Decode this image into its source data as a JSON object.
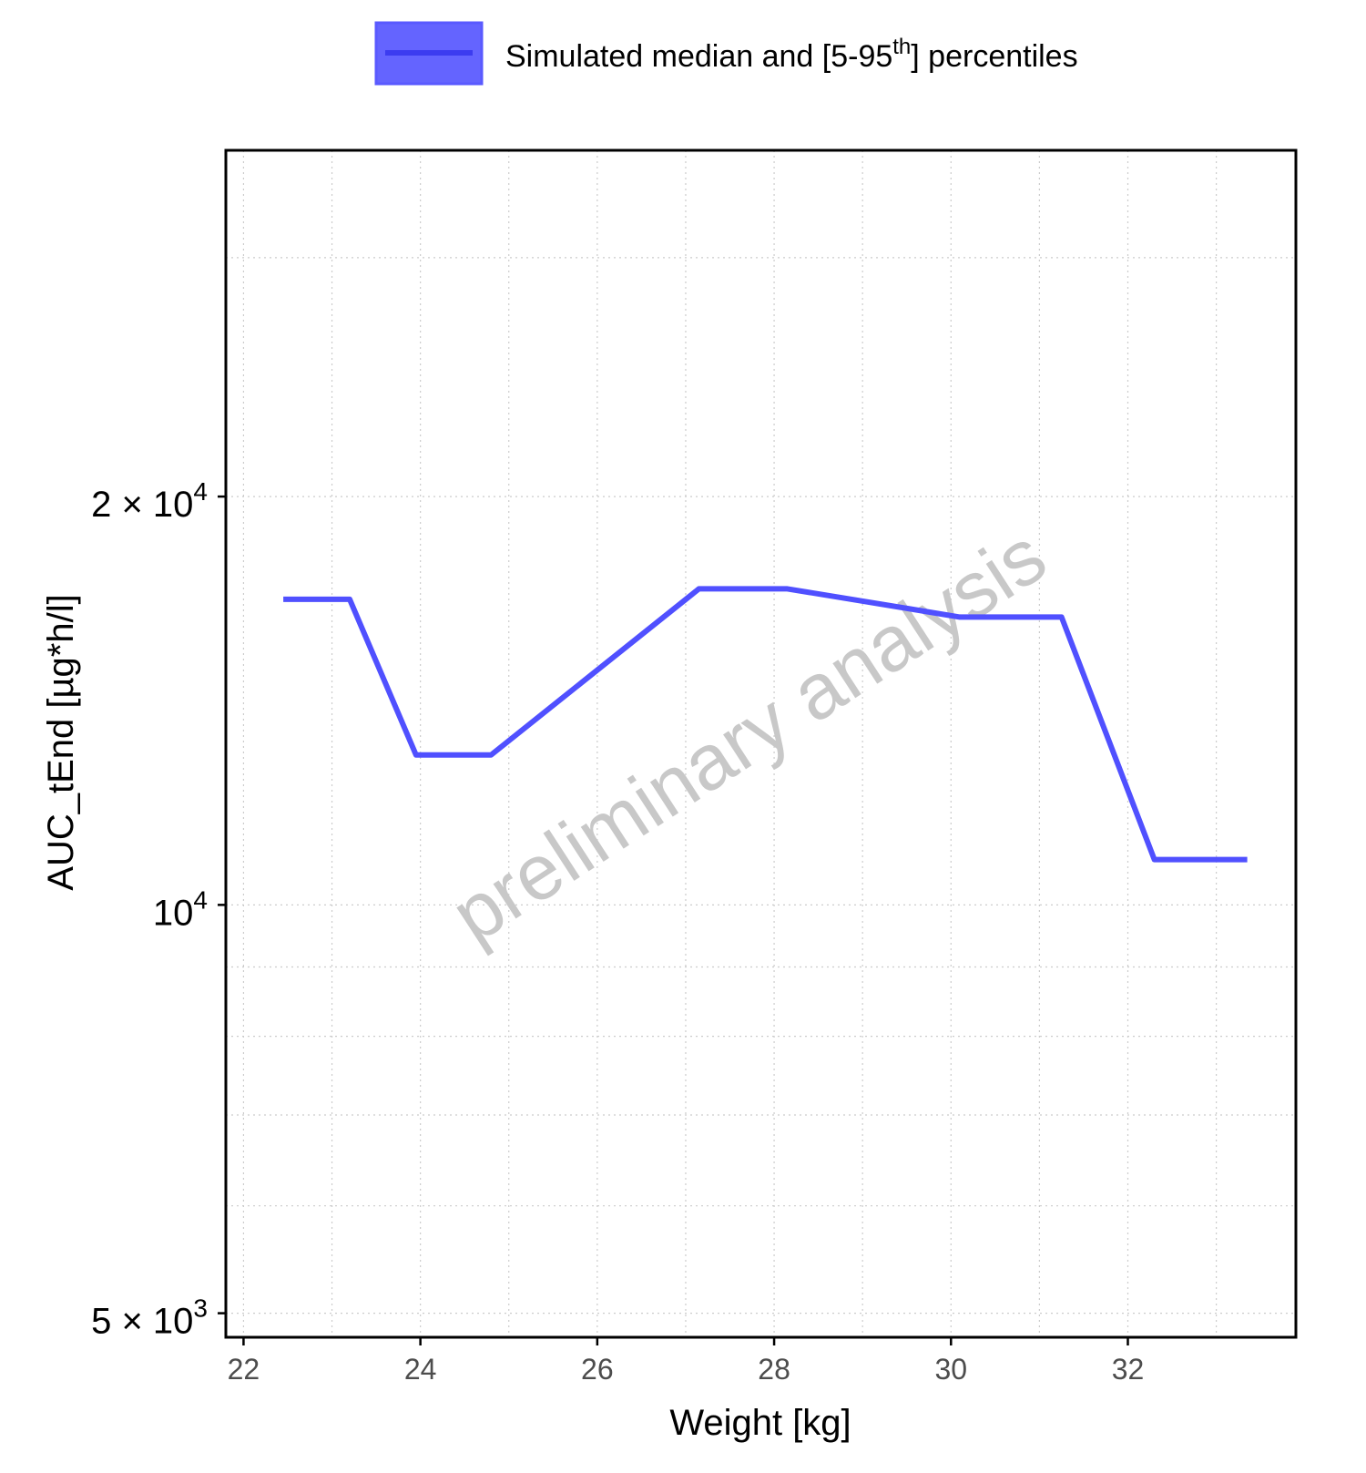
{
  "chart_data": {
    "type": "line",
    "xlabel": "Weight [kg]",
    "ylabel": "AUC_tEnd [µg*h/l]",
    "y_scale": "log",
    "xlim": [
      21.8,
      33.9
    ],
    "ylim": [
      4800,
      36000
    ],
    "x_ticks": [
      22,
      24,
      26,
      28,
      30,
      32
    ],
    "y_ticks": [
      {
        "value": 5000,
        "mantissa": "5",
        "exponent": "3"
      },
      {
        "value": 10000,
        "mantissa": "",
        "exponent": "4"
      },
      {
        "value": 20000,
        "mantissa": "2",
        "exponent": "4"
      }
    ],
    "y_minor_grid": [
      6000,
      7000,
      8000,
      9000,
      30000
    ],
    "grid": true,
    "legend": {
      "position": "top",
      "label_prefix": "Simulated median and [5-95",
      "label_superscript": "th",
      "label_suffix": "] percentiles"
    },
    "watermark": "preliminary analysis",
    "colors": {
      "series": "#5050ff",
      "band": "#6060ff",
      "grid": "#cccccc",
      "watermark": "#c8c8c8"
    },
    "series": [
      {
        "values_x": [
          22.45,
          23.2,
          23.95,
          24.8,
          27.15,
          28.15,
          30.1,
          31.25,
          32.3,
          33.35
        ],
        "values_y": [
          16800,
          16800,
          12900,
          12900,
          17100,
          17100,
          16300,
          16300,
          10800,
          10800
        ]
      }
    ]
  }
}
